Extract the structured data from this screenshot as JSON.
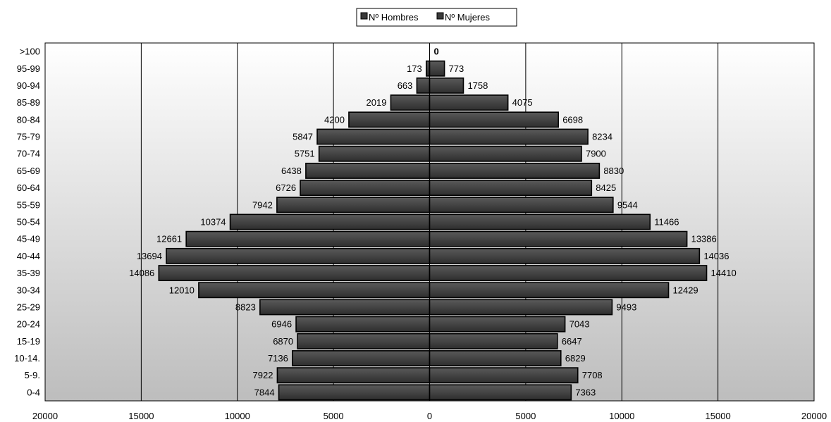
{
  "chart_data": {
    "type": "bar",
    "orientation": "horizontal",
    "layout": "population-pyramid",
    "legend_position": "top-center",
    "grid": true,
    "xlim": [
      -20000,
      20000
    ],
    "xticks": [
      -20000,
      -15000,
      -10000,
      -5000,
      0,
      5000,
      10000,
      15000,
      20000
    ],
    "xtick_labels": [
      "20000",
      "15000",
      "10000",
      "5000",
      "0",
      "5000",
      "10000",
      "15000",
      "20000"
    ],
    "categories": [
      ">100",
      "95-99",
      "90-94",
      "85-89",
      "80-84",
      "75-79",
      "70-74",
      "65-69",
      "60-64",
      "55-59",
      "50-54",
      "45-49",
      "40-44",
      "35-39",
      "30-34",
      "25-29",
      "20-24",
      "15-19",
      "10-14.",
      "5-9.",
      "0-4"
    ],
    "series": [
      {
        "name": "Nº Hombres",
        "side": "left",
        "color": "#3a3a3a",
        "values": [
          0,
          173,
          663,
          2019,
          4200,
          5847,
          5751,
          6438,
          6726,
          7942,
          10374,
          12661,
          13694,
          14086,
          12010,
          8823,
          6946,
          6870,
          7136,
          7922,
          7844
        ]
      },
      {
        "name": "Nº Mujeres",
        "side": "right",
        "color": "#3a3a3a",
        "values": [
          0,
          773,
          1758,
          4075,
          6698,
          8234,
          7900,
          8830,
          8425,
          9544,
          11466,
          13386,
          14036,
          14410,
          12429,
          9493,
          7043,
          6647,
          6829,
          7708,
          7363
        ]
      }
    ],
    "data_labels": {
      "left": [
        "",
        "173",
        "663",
        "2019",
        "4200",
        "5847",
        "5751",
        "6438",
        "6726",
        "7942",
        "10374",
        "12661",
        "13694",
        "14086",
        "12010",
        "8823",
        "6946",
        "6870",
        "7136",
        "7922",
        "7844"
      ],
      "right": [
        "0",
        "773",
        "1758",
        "4075",
        "6698",
        "8234",
        "7900",
        "8830",
        "8425",
        "9544",
        "11466",
        "13386",
        "14036",
        "14410",
        "12429",
        "9493",
        "7043",
        "6647",
        "6829",
        "7708",
        "7363"
      ]
    },
    "background_gradient": [
      "#ffffff",
      "#bdbdbd"
    ]
  }
}
